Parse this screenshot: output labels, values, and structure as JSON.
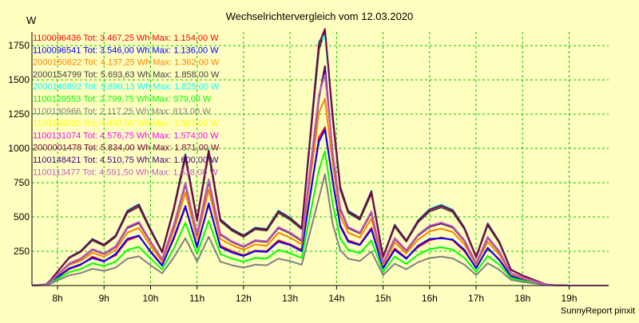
{
  "chart_data": {
    "type": "line",
    "title": "Wechselrichtervergleich vom 12.03.2020",
    "ylabel": "W",
    "xlabel": "",
    "footer": "SunnyReport pinxit",
    "ylim": [
      0,
      1850
    ],
    "xlim": [
      7.45,
      19.85
    ],
    "x_ticks": [
      8,
      9,
      10,
      11,
      12,
      13,
      14,
      15,
      16,
      17,
      18,
      19
    ],
    "x_tick_labels": [
      "8h",
      "9h",
      "10h",
      "11h",
      "12h",
      "13h",
      "14h",
      "15h",
      "16h",
      "17h",
      "18h",
      "19h"
    ],
    "y_ticks": [
      250,
      500,
      750,
      1000,
      1250,
      1500,
      1750
    ],
    "y_tick_labels": [
      "250",
      "500",
      "750",
      "1000",
      "1250",
      "1500",
      "1750"
    ],
    "grid": true,
    "legend_position": "top-left",
    "colors": {
      "background": "#ffffc0",
      "plot_background": "#ffffc0",
      "grid": "#00c800",
      "axis": "#000000"
    },
    "x": [
      7.45,
      7.75,
      7.83,
      8.0,
      8.25,
      8.5,
      8.75,
      9.0,
      9.25,
      9.5,
      9.75,
      10.0,
      10.25,
      10.5,
      10.75,
      11.0,
      11.25,
      11.5,
      11.75,
      12.0,
      12.25,
      12.5,
      12.75,
      13.0,
      13.25,
      13.5,
      13.62,
      13.75,
      13.92,
      14.08,
      14.25,
      14.5,
      14.75,
      15.0,
      15.25,
      15.5,
      15.75,
      16.0,
      16.25,
      16.5,
      16.75,
      17.0,
      17.25,
      17.5,
      17.75,
      18.0,
      18.25,
      18.5,
      18.75,
      19.0,
      19.25,
      19.5,
      19.85
    ],
    "series": [
      {
        "label": "1100096436 Tot: 3.467,25 Wh Max: 1.154,00 W",
        "color": "#ff0000",
        "values": [
          0,
          5,
          18,
          60,
          120,
          150,
          210,
          180,
          220,
          330,
          360,
          250,
          150,
          340,
          570,
          290,
          590,
          290,
          250,
          220,
          255,
          250,
          330,
          300,
          260,
          800,
          1080,
          1154,
          750,
          440,
          330,
          300,
          420,
          130,
          270,
          200,
          280,
          330,
          350,
          330,
          250,
          130,
          270,
          190,
          70,
          45,
          25,
          5,
          1,
          0,
          0,
          0,
          0
        ]
      },
      {
        "label": "1100096541 Tot: 3.546,00 Wh Max: 1.136,00 W",
        "color": "#0000ff",
        "values": [
          0,
          5,
          18,
          62,
          125,
          155,
          200,
          175,
          230,
          340,
          365,
          245,
          145,
          350,
          580,
          280,
          600,
          280,
          240,
          215,
          250,
          245,
          320,
          295,
          250,
          810,
          1050,
          1136,
          760,
          430,
          320,
          295,
          410,
          125,
          260,
          195,
          290,
          340,
          345,
          335,
          260,
          125,
          275,
          185,
          68,
          44,
          24,
          5,
          1,
          0,
          0,
          0,
          0
        ]
      },
      {
        "label": "2000150622 Tot: 4.137,25 Wh Max: 1.362,00 W",
        "color": "#ff8000",
        "values": [
          0,
          6,
          22,
          75,
          150,
          180,
          240,
          210,
          260,
          385,
          420,
          290,
          175,
          400,
          680,
          340,
          700,
          340,
          295,
          260,
          300,
          290,
          385,
          350,
          300,
          950,
          1260,
          1362,
          880,
          510,
          385,
          350,
          490,
          150,
          315,
          235,
          335,
          395,
          415,
          390,
          300,
          150,
          320,
          225,
          82,
          52,
          29,
          6,
          1,
          0,
          0,
          0,
          0
        ]
      },
      {
        "label": "2000154799 Tot: 5.693,63 Wh Max: 1.858,00 W",
        "color": "#404040",
        "values": [
          0,
          8,
          30,
          100,
          200,
          245,
          330,
          290,
          355,
          530,
          575,
          400,
          240,
          550,
          930,
          470,
          960,
          470,
          400,
          355,
          410,
          400,
          530,
          480,
          410,
          1300,
          1720,
          1858,
          1200,
          700,
          530,
          480,
          670,
          205,
          430,
          320,
          460,
          540,
          570,
          535,
          410,
          205,
          440,
          310,
          112,
          72,
          40,
          8,
          2,
          0,
          0,
          0,
          0
        ]
      },
      {
        "label": "2000146892 Tot: 5.890,13 Wh Max: 1.825,00 W",
        "color": "#00ffff",
        "values": [
          0,
          8,
          31,
          103,
          206,
          253,
          341,
          299,
          367,
          548,
          595,
          414,
          248,
          569,
          962,
          486,
          993,
          486,
          414,
          367,
          424,
          414,
          548,
          496,
          424,
          1345,
          1780,
          1825,
          1240,
          724,
          548,
          496,
          693,
          212,
          445,
          331,
          476,
          559,
          590,
          553,
          424,
          212,
          455,
          321,
          116,
          74,
          41,
          8,
          2,
          0,
          0,
          0,
          0
        ]
      },
      {
        "label": "1100129553 Tot: 2.799,75 Wh Max: 979,00 W",
        "color": "#00ff00",
        "values": [
          0,
          4,
          15,
          49,
          98,
          120,
          162,
          142,
          174,
          260,
          282,
          196,
          118,
          270,
          456,
          230,
          471,
          230,
          196,
          174,
          201,
          196,
          260,
          235,
          201,
          637,
          843,
          979,
          588,
          343,
          260,
          235,
          328,
          100,
          211,
          157,
          225,
          265,
          279,
          262,
          201,
          100,
          216,
          152,
          55,
          35,
          20,
          4,
          1,
          0,
          0,
          0,
          0
        ]
      },
      {
        "label": "1100130966 Tot: 2.117,25 Wh Max: 813,00 W",
        "color": "#808080",
        "values": [
          0,
          3,
          11,
          37,
          74,
          91,
          122,
          107,
          131,
          196,
          213,
          148,
          89,
          204,
          345,
          174,
          356,
          174,
          148,
          131,
          152,
          148,
          196,
          178,
          152,
          481,
          637,
          813,
          444,
          259,
          196,
          178,
          248,
          76,
          159,
          118,
          170,
          200,
          211,
          198,
          152,
          76,
          163,
          115,
          41,
          27,
          15,
          3,
          1,
          0,
          0,
          0,
          0
        ]
      },
      {
        "label": "1100134025 Tot: 4.490,50 Wh Max: 1.587,00 W",
        "color": "#ffff00",
        "values": [
          0,
          6,
          24,
          79,
          158,
          194,
          260,
          229,
          281,
          418,
          454,
          316,
          190,
          434,
          735,
          371,
          758,
          371,
          316,
          281,
          324,
          316,
          418,
          379,
          324,
          1027,
          1359,
          1587,
          947,
          553,
          418,
          379,
          529,
          162,
          340,
          253,
          363,
          427,
          450,
          422,
          324,
          162,
          348,
          245,
          88,
          57,
          32,
          6,
          2,
          0,
          0,
          0,
          0
        ]
      },
      {
        "label": "1100131074 Tot: 4.576,75 Wh Max: 1.574,00 W",
        "color": "#ff00ff",
        "values": [
          0,
          6,
          24,
          81,
          161,
          197,
          265,
          233,
          286,
          426,
          463,
          322,
          193,
          442,
          749,
          378,
          772,
          378,
          322,
          286,
          330,
          322,
          426,
          386,
          330,
          1046,
          1385,
          1574,
          965,
          563,
          426,
          386,
          539,
          165,
          346,
          258,
          370,
          435,
          459,
          430,
          330,
          165,
          354,
          249,
          90,
          58,
          32,
          6,
          2,
          0,
          0,
          0,
          0
        ]
      },
      {
        "label": "2000001478 Tot: 5.834,00 Wh Max: 1.871,00 W",
        "color": "#800040",
        "values": [
          0,
          8,
          31,
          102,
          205,
          251,
          338,
          297,
          364,
          543,
          590,
          410,
          246,
          564,
          953,
          482,
          984,
          482,
          410,
          364,
          420,
          410,
          543,
          492,
          420,
          1333,
          1764,
          1871,
          1230,
          718,
          543,
          492,
          687,
          210,
          441,
          328,
          472,
          554,
          584,
          548,
          420,
          210,
          451,
          318,
          115,
          74,
          41,
          8,
          2,
          0,
          0,
          0,
          0
        ]
      },
      {
        "label": "1100148421 Tot: 4.510,75 Wh Max: 1.600,00 W",
        "color": "#400080",
        "values": [
          0,
          6,
          24,
          79,
          159,
          195,
          261,
          230,
          282,
          420,
          456,
          318,
          191,
          436,
          739,
          373,
          762,
          373,
          318,
          282,
          326,
          318,
          420,
          381,
          326,
          1032,
          1366,
          1600,
          952,
          556,
          420,
          381,
          532,
          163,
          341,
          254,
          365,
          429,
          452,
          424,
          326,
          163,
          349,
          246,
          89,
          57,
          32,
          6,
          2,
          0,
          0,
          0,
          0
        ]
      },
      {
        "label": "1100113477 Tot: 4.591,50 Wh Max: 1.538,00 W",
        "color": "#c060c0",
        "values": [
          0,
          6,
          24,
          81,
          162,
          198,
          266,
          234,
          287,
          427,
          464,
          323,
          194,
          444,
          751,
          379,
          775,
          379,
          323,
          287,
          331,
          323,
          427,
          387,
          331,
          1050,
          1390,
          1538,
          968,
          565,
          427,
          387,
          541,
          165,
          347,
          259,
          371,
          436,
          460,
          431,
          331,
          165,
          355,
          250,
          90,
          58,
          32,
          6,
          2,
          0,
          0,
          0,
          0
        ]
      }
    ]
  }
}
